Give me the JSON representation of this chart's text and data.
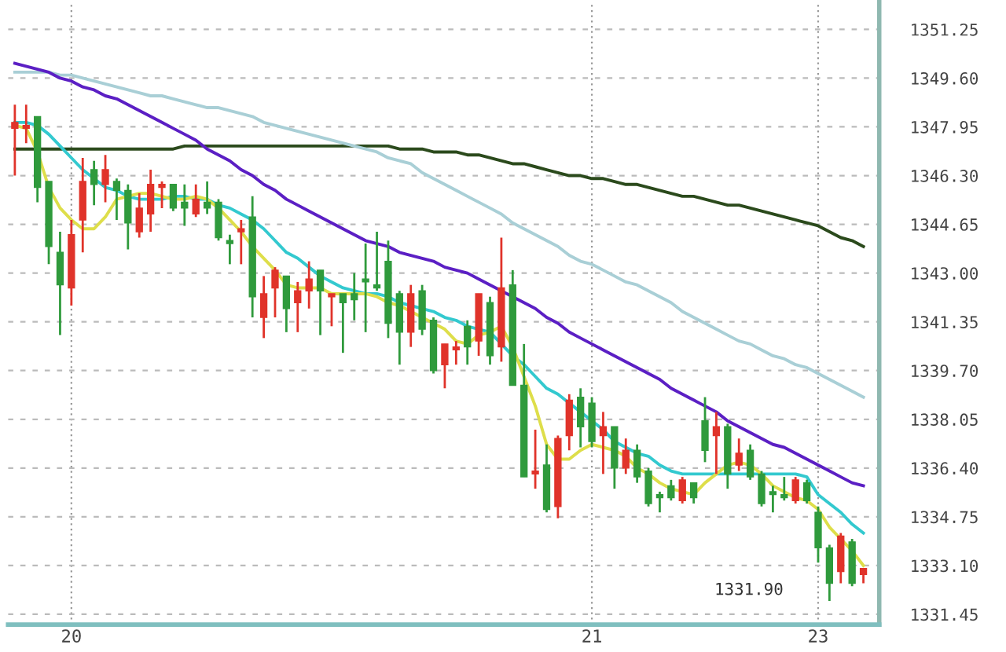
{
  "chart_data": {
    "type": "candlestick",
    "categories": [
      null,
      null,
      null,
      null,
      null,
      "20",
      null,
      null,
      null,
      null,
      null,
      null,
      null,
      null,
      null,
      null,
      null,
      null,
      null,
      null,
      null,
      null,
      null,
      null,
      null,
      null,
      null,
      null,
      null,
      null,
      null,
      null,
      null,
      null,
      null,
      null,
      null,
      null,
      null,
      null,
      null,
      null,
      null,
      null,
      null,
      null,
      null,
      null,
      null,
      null,
      null,
      "21",
      null,
      null,
      null,
      null,
      null,
      null,
      null,
      null,
      null,
      null,
      null,
      null,
      null,
      null,
      null,
      null,
      null,
      null,
      null,
      "23",
      null,
      null,
      null,
      null
    ],
    "ohlc": [
      [
        1347.9,
        1348.7,
        1346.3,
        1348.1
      ],
      [
        1347.9,
        1348.7,
        1347.4,
        1348.0
      ],
      [
        1348.3,
        1348.3,
        1345.4,
        1345.9
      ],
      [
        1346.1,
        1346.1,
        1343.3,
        1343.9
      ],
      [
        1343.7,
        1344.4,
        1340.9,
        1342.6
      ],
      [
        1342.5,
        1344.8,
        1341.9,
        1344.3
      ],
      [
        1344.8,
        1346.9,
        1343.7,
        1346.1
      ],
      [
        1346.5,
        1346.8,
        1345.3,
        1346.0
      ],
      [
        1346.0,
        1347.0,
        1345.4,
        1346.5
      ],
      [
        1346.1,
        1346.2,
        1344.8,
        1345.8
      ],
      [
        1345.8,
        1346.0,
        1343.8,
        1344.7
      ],
      [
        1344.4,
        1345.7,
        1344.2,
        1345.2
      ],
      [
        1345.0,
        1346.5,
        1344.4,
        1346.0
      ],
      [
        1345.9,
        1346.1,
        1345.2,
        1346.0
      ],
      [
        1346.0,
        1346.0,
        1345.1,
        1345.2
      ],
      [
        1345.4,
        1346.0,
        1344.6,
        1345.2
      ],
      [
        1345.0,
        1346.0,
        1344.9,
        1345.5
      ],
      [
        1345.4,
        1346.1,
        1345.0,
        1345.2
      ],
      [
        1345.4,
        1345.5,
        1344.1,
        1344.2
      ],
      [
        1344.1,
        1344.3,
        1343.3,
        1344.0
      ],
      [
        1344.4,
        1344.8,
        1343.3,
        1344.5
      ],
      [
        1344.9,
        1345.6,
        1341.5,
        1342.2
      ],
      [
        1341.5,
        1342.9,
        1340.8,
        1342.3
      ],
      [
        1342.5,
        1343.2,
        1341.5,
        1343.1
      ],
      [
        1342.9,
        1342.9,
        1341.0,
        1341.8
      ],
      [
        1342.0,
        1342.7,
        1341.0,
        1342.4
      ],
      [
        1342.4,
        1343.4,
        1341.8,
        1342.8
      ],
      [
        1343.1,
        1343.1,
        1340.9,
        1342.4
      ],
      [
        1342.2,
        1342.3,
        1341.2,
        1342.3
      ],
      [
        1342.3,
        1342.3,
        1340.3,
        1342.0
      ],
      [
        1342.3,
        1343.0,
        1341.4,
        1342.1
      ],
      [
        1342.8,
        1344.0,
        1341.0,
        1342.7
      ],
      [
        1342.6,
        1344.4,
        1342.4,
        1342.5
      ],
      [
        1343.4,
        1344.1,
        1340.8,
        1341.3
      ],
      [
        1342.3,
        1342.4,
        1339.9,
        1341.0
      ],
      [
        1341.0,
        1342.6,
        1340.5,
        1342.3
      ],
      [
        1342.4,
        1342.6,
        1340.9,
        1341.1
      ],
      [
        1341.4,
        1341.5,
        1339.6,
        1339.7
      ],
      [
        1339.9,
        1340.6,
        1339.1,
        1340.6
      ],
      [
        1340.4,
        1340.7,
        1339.9,
        1340.5
      ],
      [
        1341.2,
        1341.4,
        1339.9,
        1340.5
      ],
      [
        1340.7,
        1342.3,
        1340.2,
        1342.3
      ],
      [
        1342.0,
        1342.2,
        1339.9,
        1340.2
      ],
      [
        1340.5,
        1344.2,
        1340.0,
        1342.5
      ],
      [
        1342.6,
        1343.1,
        1339.2,
        1339.2
      ],
      [
        1339.2,
        1340.6,
        1336.1,
        1336.1
      ],
      [
        1336.2,
        1337.7,
        1335.7,
        1336.3
      ],
      [
        1336.5,
        1337.2,
        1334.9,
        1335.0
      ],
      [
        1335.1,
        1337.5,
        1334.7,
        1337.4
      ],
      [
        1337.5,
        1338.9,
        1337.0,
        1338.7
      ],
      [
        1338.8,
        1339.1,
        1337.1,
        1337.8
      ],
      [
        1338.6,
        1338.8,
        1337.1,
        1337.3
      ],
      [
        1337.5,
        1338.3,
        1336.2,
        1337.8
      ],
      [
        1337.8,
        1337.8,
        1335.7,
        1336.4
      ],
      [
        1336.4,
        1337.4,
        1336.2,
        1337.0
      ],
      [
        1337.0,
        1337.2,
        1335.9,
        1336.1
      ],
      [
        1336.3,
        1336.4,
        1335.1,
        1335.2
      ],
      [
        1335.5,
        1335.6,
        1334.9,
        1335.4
      ],
      [
        1335.8,
        1336.0,
        1335.3,
        1335.4
      ],
      [
        1335.3,
        1336.1,
        1335.2,
        1336.0
      ],
      [
        1335.9,
        1335.9,
        1335.2,
        1335.4
      ],
      [
        1338.0,
        1338.8,
        1336.6,
        1337.0
      ],
      [
        1337.5,
        1338.3,
        1336.2,
        1337.8
      ],
      [
        1337.8,
        1337.9,
        1335.7,
        1336.2
      ],
      [
        1336.5,
        1337.4,
        1336.3,
        1336.9
      ],
      [
        1337.0,
        1337.2,
        1336.0,
        1336.1
      ],
      [
        1336.2,
        1336.3,
        1335.1,
        1335.2
      ],
      [
        1335.6,
        1335.8,
        1334.9,
        1335.5
      ],
      [
        1335.5,
        1336.1,
        1335.3,
        1335.4
      ],
      [
        1335.3,
        1336.1,
        1335.2,
        1336.0
      ],
      [
        1335.9,
        1336.0,
        1335.2,
        1335.3
      ],
      [
        1334.9,
        1335.1,
        1333.2,
        1333.7
      ],
      [
        1333.7,
        1333.8,
        1331.9,
        1332.5
      ],
      [
        1332.9,
        1334.2,
        1332.5,
        1334.1
      ],
      [
        1333.9,
        1334.0,
        1332.4,
        1332.5
      ],
      [
        1332.8,
        1333.0,
        1332.5,
        1333.0
      ]
    ],
    "colors": [
      "#e0332a",
      "#e0332a",
      "#2f9a3c",
      "#2f9a3c",
      "#2f9a3c",
      "#e0332a",
      "#e0332a",
      "#2f9a3c",
      "#e0332a",
      "#2f9a3c",
      "#2f9a3c",
      "#e0332a",
      "#e0332a",
      "#e0332a",
      "#2f9a3c",
      "#2f9a3c",
      "#e0332a",
      "#2f9a3c",
      "#2f9a3c",
      "#2f9a3c",
      "#e0332a",
      "#2f9a3c",
      "#e0332a",
      "#e0332a",
      "#2f9a3c",
      "#e0332a",
      "#e0332a",
      "#2f9a3c",
      "#e0332a",
      "#2f9a3c",
      "#2f9a3c",
      "#2f9a3c",
      "#2f9a3c",
      "#2f9a3c",
      "#2f9a3c",
      "#e0332a",
      "#2f9a3c",
      "#2f9a3c",
      "#e0332a",
      "#e0332a",
      "#2f9a3c",
      "#e0332a",
      "#2f9a3c",
      "#e0332a",
      "#2f9a3c",
      "#2f9a3c",
      "#e0332a",
      "#2f9a3c",
      "#e0332a",
      "#e0332a",
      "#2f9a3c",
      "#2f9a3c",
      "#e0332a",
      "#2f9a3c",
      "#e0332a",
      "#2f9a3c",
      "#2f9a3c",
      "#2f9a3c",
      "#2f9a3c",
      "#e0332a",
      "#2f9a3c",
      "#2f9a3c",
      "#e0332a",
      "#2f9a3c",
      "#e0332a",
      "#2f9a3c",
      "#2f9a3c",
      "#2f9a3c",
      "#2f9a3c",
      "#e0332a",
      "#2f9a3c",
      "#2f9a3c",
      "#2f9a3c",
      "#e0332a",
      "#2f9a3c",
      "#e0332a"
    ],
    "series": [
      {
        "type": "line",
        "color": "#2b4a1c",
        "values": [
          1347.2,
          1347.2,
          1347.2,
          1347.2,
          1347.2,
          1347.2,
          1347.2,
          1347.2,
          1347.2,
          1347.2,
          1347.2,
          1347.2,
          1347.2,
          1347.2,
          1347.2,
          1347.3,
          1347.3,
          1347.3,
          1347.3,
          1347.3,
          1347.3,
          1347.3,
          1347.3,
          1347.3,
          1347.3,
          1347.3,
          1347.3,
          1347.3,
          1347.3,
          1347.3,
          1347.3,
          1347.3,
          1347.3,
          1347.3,
          1347.2,
          1347.2,
          1347.2,
          1347.1,
          1347.1,
          1347.1,
          1347.0,
          1347.0,
          1346.9,
          1346.8,
          1346.7,
          1346.7,
          1346.6,
          1346.5,
          1346.4,
          1346.3,
          1346.3,
          1346.2,
          1346.2,
          1346.1,
          1346.0,
          1346.0,
          1345.9,
          1345.8,
          1345.7,
          1345.6,
          1345.6,
          1345.5,
          1345.4,
          1345.3,
          1345.3,
          1345.2,
          1345.1,
          1345.0,
          1344.9,
          1344.8,
          1344.7,
          1344.6,
          1344.4,
          1344.2,
          1344.1,
          1343.9
        ]
      },
      {
        "type": "line",
        "color": "#a9cfd6",
        "values": [
          1349.8,
          1349.8,
          1349.8,
          1349.8,
          1349.7,
          1349.7,
          1349.6,
          1349.5,
          1349.4,
          1349.3,
          1349.2,
          1349.1,
          1349.0,
          1349.0,
          1348.9,
          1348.8,
          1348.7,
          1348.6,
          1348.6,
          1348.5,
          1348.4,
          1348.3,
          1348.1,
          1348.0,
          1347.9,
          1347.8,
          1347.7,
          1347.6,
          1347.5,
          1347.4,
          1347.3,
          1347.2,
          1347.1,
          1346.9,
          1346.8,
          1346.7,
          1346.4,
          1346.2,
          1346.0,
          1345.8,
          1345.6,
          1345.4,
          1345.2,
          1345.0,
          1344.7,
          1344.5,
          1344.3,
          1344.1,
          1343.9,
          1343.6,
          1343.4,
          1343.3,
          1343.1,
          1342.9,
          1342.7,
          1342.6,
          1342.4,
          1342.2,
          1342.0,
          1341.7,
          1341.5,
          1341.3,
          1341.1,
          1340.9,
          1340.7,
          1340.6,
          1340.4,
          1340.2,
          1340.1,
          1339.9,
          1339.8,
          1339.6,
          1339.4,
          1339.2,
          1339.0,
          1338.8
        ]
      },
      {
        "type": "line",
        "color": "#5b1fc4",
        "values": [
          1350.1,
          1350.0,
          1349.9,
          1349.8,
          1349.6,
          1349.5,
          1349.3,
          1349.2,
          1349.0,
          1348.9,
          1348.7,
          1348.5,
          1348.3,
          1348.1,
          1347.9,
          1347.7,
          1347.5,
          1347.2,
          1347.0,
          1346.8,
          1346.5,
          1346.3,
          1346.0,
          1345.8,
          1345.5,
          1345.3,
          1345.1,
          1344.9,
          1344.7,
          1344.5,
          1344.3,
          1344.1,
          1344.0,
          1343.9,
          1343.7,
          1343.6,
          1343.5,
          1343.4,
          1343.2,
          1343.1,
          1343.0,
          1342.8,
          1342.6,
          1342.4,
          1342.2,
          1342.0,
          1341.8,
          1341.5,
          1341.3,
          1341.0,
          1340.8,
          1340.6,
          1340.4,
          1340.2,
          1340.0,
          1339.8,
          1339.6,
          1339.4,
          1339.1,
          1338.9,
          1338.7,
          1338.5,
          1338.3,
          1338.0,
          1337.8,
          1337.6,
          1337.4,
          1337.2,
          1337.1,
          1336.9,
          1336.7,
          1336.5,
          1336.3,
          1336.1,
          1335.9,
          1335.8
        ]
      },
      {
        "type": "line",
        "color": "#33c9cf",
        "values": [
          1348.1,
          1348.1,
          1348.0,
          1347.7,
          1347.3,
          1346.9,
          1346.5,
          1346.2,
          1345.9,
          1345.8,
          1345.6,
          1345.5,
          1345.5,
          1345.5,
          1345.6,
          1345.6,
          1345.5,
          1345.5,
          1345.3,
          1345.2,
          1345.0,
          1344.8,
          1344.5,
          1344.1,
          1343.7,
          1343.5,
          1343.2,
          1342.9,
          1342.7,
          1342.5,
          1342.4,
          1342.3,
          1342.3,
          1342.2,
          1342.0,
          1341.9,
          1341.8,
          1341.7,
          1341.5,
          1341.4,
          1341.2,
          1341.1,
          1341.0,
          1340.6,
          1340.2,
          1339.9,
          1339.5,
          1339.1,
          1338.9,
          1338.6,
          1338.3,
          1338.0,
          1337.7,
          1337.3,
          1337.1,
          1336.9,
          1336.8,
          1336.5,
          1336.3,
          1336.2,
          1336.2,
          1336.2,
          1336.2,
          1336.2,
          1336.2,
          1336.2,
          1336.2,
          1336.2,
          1336.2,
          1336.2,
          1336.1,
          1335.5,
          1335.2,
          1334.9,
          1334.5,
          1334.2
        ]
      },
      {
        "type": "line",
        "color": "#dede4a",
        "values": [
          1348.0,
          1347.9,
          1347.1,
          1345.9,
          1345.2,
          1344.8,
          1344.5,
          1344.5,
          1344.9,
          1345.5,
          1345.6,
          1345.7,
          1345.7,
          1345.6,
          1345.5,
          1345.5,
          1345.6,
          1345.5,
          1345.2,
          1344.8,
          1344.4,
          1343.9,
          1343.5,
          1343.1,
          1342.6,
          1342.5,
          1342.5,
          1342.5,
          1342.3,
          1342.3,
          1342.3,
          1342.3,
          1342.2,
          1342.0,
          1341.9,
          1341.7,
          1341.5,
          1341.3,
          1341.1,
          1340.7,
          1340.6,
          1340.9,
          1341.0,
          1341.2,
          1340.5,
          1339.5,
          1338.5,
          1337.2,
          1336.7,
          1336.7,
          1337.0,
          1337.2,
          1337.1,
          1337.0,
          1336.8,
          1336.4,
          1336.2,
          1335.9,
          1335.7,
          1335.6,
          1335.5,
          1335.9,
          1336.2,
          1336.5,
          1336.6,
          1336.5,
          1336.2,
          1335.8,
          1335.6,
          1335.4,
          1335.3,
          1335.0,
          1334.4,
          1334.0,
          1333.6,
          1333.1
        ]
      }
    ],
    "ylim": [
      1331.1,
      1352.2
    ],
    "yticks": [
      {
        "value": 1331.45,
        "label": "1331.45"
      },
      {
        "value": 1333.1,
        "label": "1333.10"
      },
      {
        "value": 1334.75,
        "label": "1334.75"
      },
      {
        "value": 1336.4,
        "label": "1336.40"
      },
      {
        "value": 1338.05,
        "label": "1338.05"
      },
      {
        "value": 1339.7,
        "label": "1339.70"
      },
      {
        "value": 1341.35,
        "label": "1341.35"
      },
      {
        "value": 1343.0,
        "label": "1343.00"
      },
      {
        "value": 1344.65,
        "label": "1344.65"
      },
      {
        "value": 1346.3,
        "label": "1346.30"
      },
      {
        "value": 1347.95,
        "label": "1347.95"
      },
      {
        "value": 1349.6,
        "label": "1349.60"
      },
      {
        "value": 1351.25,
        "label": "1351.25"
      }
    ],
    "grid": true,
    "legend": false,
    "annotations": [
      "1331.90"
    ]
  }
}
